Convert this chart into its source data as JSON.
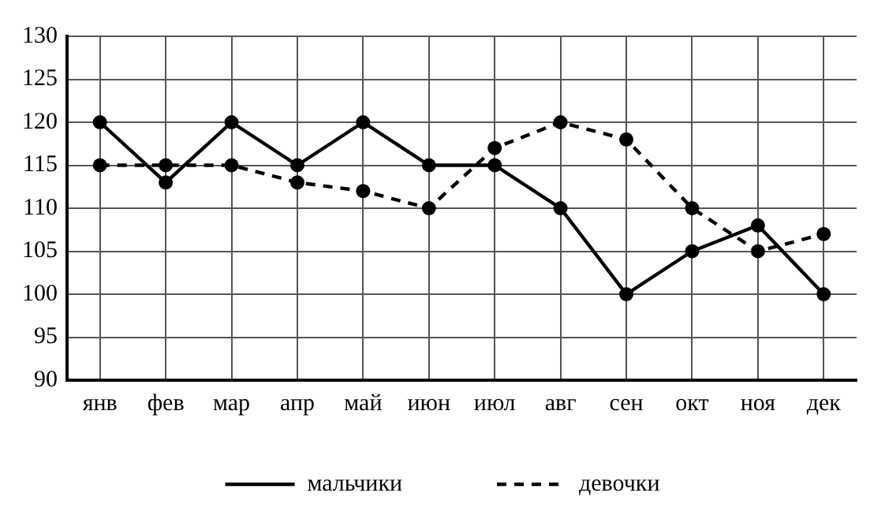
{
  "chart_data": {
    "type": "line",
    "categories": [
      "янв",
      "фев",
      "мар",
      "апр",
      "май",
      "июн",
      "июл",
      "авг",
      "сен",
      "окт",
      "ноя",
      "дек"
    ],
    "series": [
      {
        "name": "мальчики",
        "color": "#000000",
        "line_style": "solid",
        "values": [
          120,
          113,
          120,
          115,
          120,
          115,
          115,
          110,
          100,
          105,
          108,
          100
        ]
      },
      {
        "name": "девочки",
        "color": "#000000",
        "line_style": "dashed",
        "values": [
          115,
          115,
          115,
          113,
          112,
          110,
          117,
          120,
          118,
          110,
          105,
          107
        ]
      }
    ],
    "ylim": [
      90,
      130
    ],
    "yticks": [
      90,
      95,
      100,
      105,
      110,
      115,
      120,
      125,
      130
    ],
    "grid": true,
    "legend": "bottom",
    "marker": "circle"
  }
}
